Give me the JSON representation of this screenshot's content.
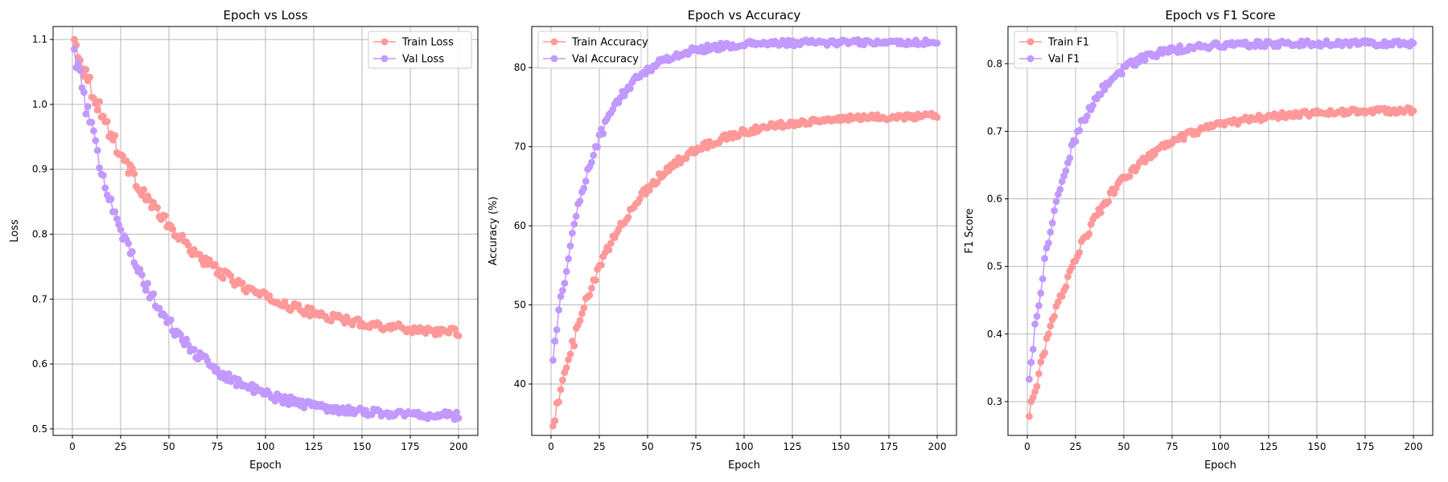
{
  "colors": {
    "train": "#ff9999",
    "val": "#c299ff"
  },
  "chart_data": [
    {
      "type": "line",
      "title": "Epoch vs Loss",
      "xlabel": "Epoch",
      "ylabel": "Loss",
      "xlim": [
        -10,
        210
      ],
      "ylim": [
        0.49,
        1.12
      ],
      "xticks": [
        0,
        25,
        50,
        75,
        100,
        125,
        150,
        175,
        200
      ],
      "yticks": [
        0.5,
        0.6,
        0.7,
        0.8,
        0.9,
        1.0,
        1.1
      ],
      "ytick_labels": [
        "0.5",
        "0.6",
        "0.7",
        "0.8",
        "0.9",
        "1.0",
        "1.1"
      ],
      "grid": true,
      "legend": "upper right",
      "x_range": [
        1,
        200
      ],
      "series": [
        {
          "name": "Train Loss",
          "curve": "exp",
          "start": 1.1,
          "end": 0.64,
          "tau": 50,
          "noise": 0.006
        },
        {
          "name": "Val Loss",
          "curve": "exp",
          "start": 1.085,
          "end": 0.518,
          "tau": 36,
          "noise": 0.006
        }
      ]
    },
    {
      "type": "line",
      "title": "Epoch vs Accuracy",
      "xlabel": "Epoch",
      "ylabel": "Accuracy (%)",
      "xlim": [
        -10,
        210
      ],
      "ylim": [
        33.5,
        85.2
      ],
      "xticks": [
        0,
        25,
        50,
        75,
        100,
        125,
        150,
        175,
        200
      ],
      "yticks": [
        40,
        50,
        60,
        70,
        80
      ],
      "ytick_labels": [
        "40",
        "50",
        "60",
        "70",
        "80"
      ],
      "grid": true,
      "legend": "upper left",
      "x_range": [
        1,
        200
      ],
      "series": [
        {
          "name": "Train Accuracy",
          "curve": "rise",
          "start": 34.7,
          "end": 74.0,
          "tau": 34,
          "noise": 0.35
        },
        {
          "name": "Val Accuracy",
          "curve": "rise",
          "start": 43.0,
          "end": 83.2,
          "tau": 20,
          "noise": 0.35
        }
      ]
    },
    {
      "type": "line",
      "title": "Epoch vs F1 Score",
      "xlabel": "Epoch",
      "ylabel": "F1 Score",
      "xlim": [
        -10,
        210
      ],
      "ylim": [
        0.25,
        0.855
      ],
      "xticks": [
        0,
        25,
        50,
        75,
        100,
        125,
        150,
        175,
        200
      ],
      "yticks": [
        0.3,
        0.4,
        0.5,
        0.6,
        0.7,
        0.8
      ],
      "ytick_labels": [
        "0.3",
        "0.4",
        "0.5",
        "0.6",
        "0.7",
        "0.8"
      ],
      "grid": true,
      "legend": "upper left",
      "x_range": [
        1,
        200
      ],
      "series": [
        {
          "name": "Train F1",
          "curve": "rise",
          "start": 0.278,
          "end": 0.732,
          "tau": 33,
          "noise": 0.004
        },
        {
          "name": "Val F1",
          "curve": "rise",
          "start": 0.333,
          "end": 0.83,
          "tau": 19,
          "noise": 0.004
        }
      ]
    }
  ]
}
